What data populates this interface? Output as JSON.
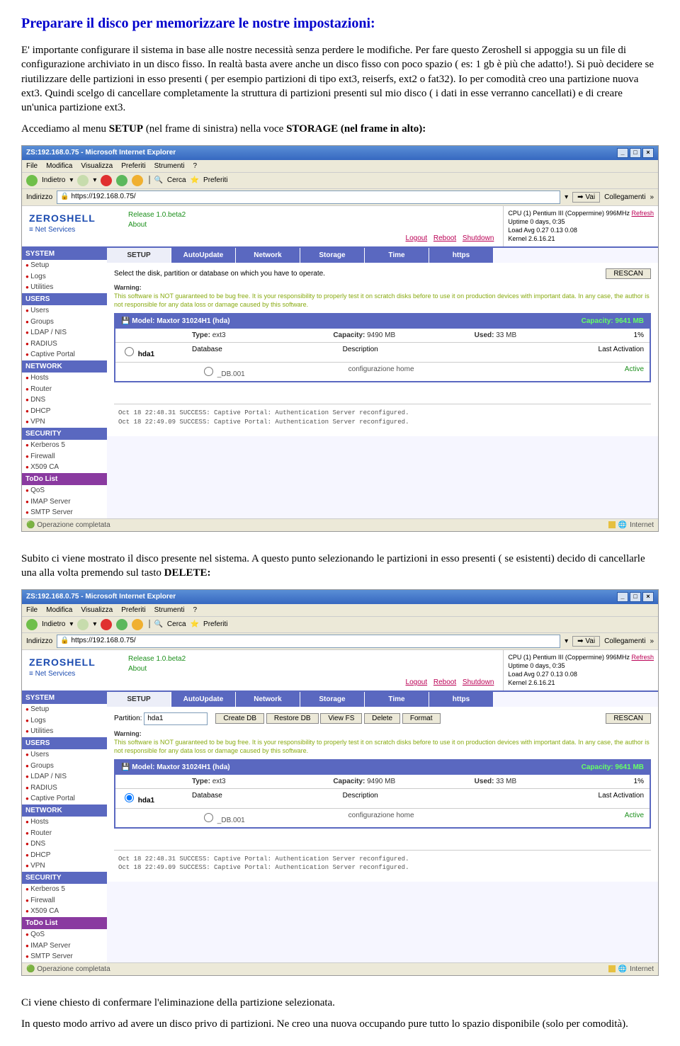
{
  "doc": {
    "title": "Preparare il disco per memorizzare le nostre impostazioni:",
    "para1": "E' importante configurare il sistema in base alle nostre necessità senza perdere le modifiche. Per fare questo Zeroshell si appoggia su un file di configurazione archiviato in un disco fisso. In realtà basta avere anche un disco fisso con poco spazio ( es: 1 gb è più che adatto!). Si può decidere se riutilizzare delle partizioni in esso presenti ( per esempio partizioni di tipo ext3, reiserfs, ext2 o fat32). Io per comodità creo una partizione nuova ext3. Quindi scelgo di cancellare completamente la struttura di partizioni presenti sul mio disco ( i dati in esse verranno cancellati) e di creare un'unica partizione ext3.",
    "para2a": "Accediamo al menu ",
    "para2b": "SETUP",
    "para2c": " (nel frame di sinistra) nella voce ",
    "para2d": "STORAGE (nel frame in alto):",
    "para3": "Subito ci viene mostrato il disco presente nel sistema. A questo punto selezionando le partizioni in esso presenti ( se esistenti) decido di cancellarle una alla volta premendo sul tasto ",
    "para3b": "DELETE:",
    "para4": "Ci viene chiesto di confermare l'eliminazione della partizione selezionata.",
    "para5": "In questo modo arrivo ad avere un disco privo di partizioni. Ne creo una nuova occupando pure tutto lo spazio disponibile (solo per comodità)."
  },
  "browser": {
    "title": "ZS:192.168.0.75 - Microsoft Internet Explorer",
    "menus": [
      "File",
      "Modifica",
      "Visualizza",
      "Preferiti",
      "Strumenti",
      "?"
    ],
    "back": "Indietro",
    "search": "Cerca",
    "fav": "Preferiti",
    "addr_label": "Indirizzo",
    "url": "https://192.168.0.75/",
    "go": "Vai",
    "links": "Collegamenti",
    "status": "Operazione completata",
    "zone": "Internet"
  },
  "zs": {
    "logo": "ZEROSHELL",
    "logo_sub": "Net Services",
    "release": "Release 1.0.beta2",
    "about": "About",
    "top_links": [
      "Logout",
      "Reboot",
      "Shutdown"
    ],
    "sys": {
      "cpu": "CPU (1) Pentium III (Coppermine) 996MHz",
      "refresh": "Refresh",
      "uptime": "Uptime   0 days, 0:35",
      "load": "Load Avg 0.27 0.13 0.08",
      "kernel": "Kernel   2.6.16.21"
    },
    "nav": {
      "system": "SYSTEM",
      "system_items": [
        "Setup",
        "Logs",
        "Utilities"
      ],
      "users": "USERS",
      "users_items": [
        "Users",
        "Groups",
        "LDAP / NIS",
        "RADIUS",
        "Captive Portal"
      ],
      "network": "NETWORK",
      "network_items": [
        "Hosts",
        "Router",
        "DNS",
        "DHCP",
        "VPN"
      ],
      "security": "SECURITY",
      "security_items": [
        "Kerberos 5",
        "Firewall",
        "X509 CA"
      ],
      "todo": "ToDo List",
      "todo_items": [
        "QoS",
        "IMAP Server",
        "SMTP Server"
      ]
    },
    "tabs": [
      "SETUP",
      "AutoUpdate",
      "Network",
      "Storage",
      "Time",
      "https"
    ],
    "panel": {
      "select_txt": "Select the disk, partition or database on which you have to operate.",
      "rescan": "RESCAN",
      "warn_title": "Warning:",
      "warn_txt": "This software is NOT guaranteed to be bug free. It is your responsibility to properly test it on scratch disks before to use it on production devices with important data. In any case, the author is not responsible for any data loss or damage caused by this software.",
      "model": "Model: Maxtor 31024H1 (hda)",
      "capacity": "Capacity: 9641 MB",
      "type_lbl": "Type:",
      "type_val": "ext3",
      "cap_lbl": "Capacity:",
      "cap_val": "9490 MB",
      "used_lbl": "Used:",
      "used_val": "33 MB",
      "pct": "1%",
      "part": "hda1",
      "db_hdr": "Database",
      "desc_hdr": "Description",
      "la_hdr": "Last Activation",
      "db": "_DB.001",
      "desc": "configurazione home",
      "la": "Active",
      "partition_lbl": "Partition:",
      "btns": [
        "Create DB",
        "Restore DB",
        "View FS",
        "Delete",
        "Format"
      ]
    },
    "log1": "Oct 18 22:48.31 SUCCESS: Captive Portal: Authentication Server reconfigured.",
    "log2": "Oct 18 22:49.09 SUCCESS: Captive Portal: Authentication Server reconfigured."
  }
}
